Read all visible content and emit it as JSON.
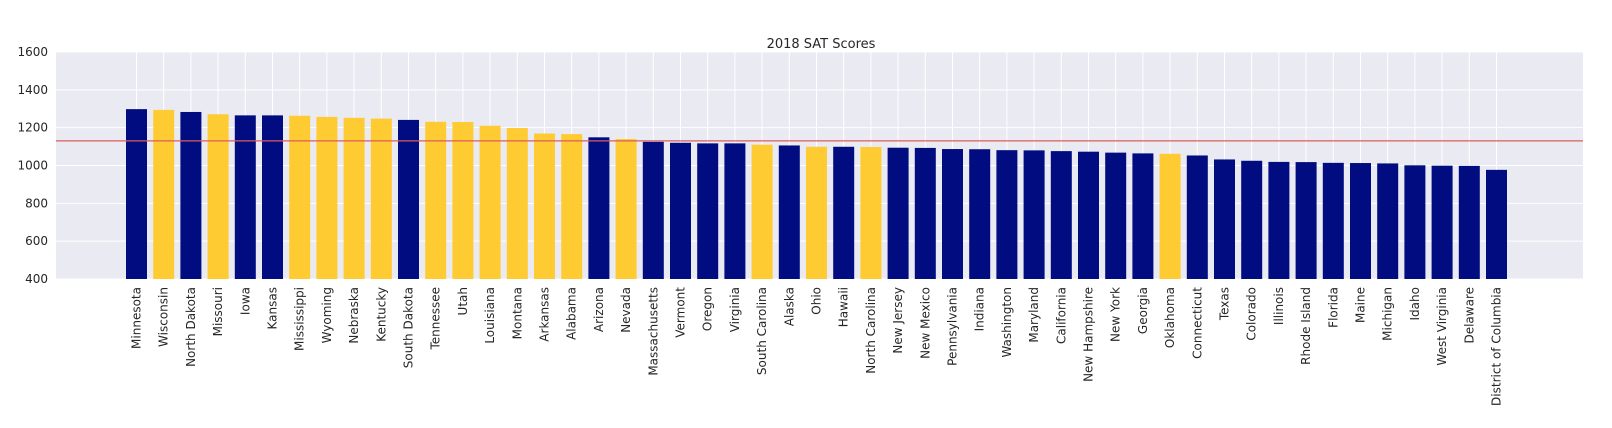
{
  "chart_data": {
    "type": "bar",
    "title": "2018 SAT Scores",
    "xlabel": "",
    "ylabel": "",
    "ylim": [
      400,
      1600
    ],
    "yticks": [
      400,
      600,
      800,
      1000,
      1200,
      1400,
      1600
    ],
    "grid": true,
    "reference_line": 1130,
    "colors": {
      "background": "#eaeaf2",
      "grid": "#ffffff",
      "bar_blue": "#000c80",
      "bar_gold": "#ffcb32",
      "reference_line": "#dc5d5d"
    },
    "categories": [
      "Minnesota",
      "Wisconsin",
      "North Dakota",
      "Missouri",
      "Iowa",
      "Kansas",
      "Mississippi",
      "Wyoming",
      "Nebraska",
      "Kentucky",
      "South Dakota",
      "Tennessee",
      "Utah",
      "Louisiana",
      "Montana",
      "Arkansas",
      "Alabama",
      "Arizona",
      "Nevada",
      "Massachusetts",
      "Vermont",
      "Oregon",
      "Virginia",
      "South Carolina",
      "Alaska",
      "Ohio",
      "Hawaii",
      "North Carolina",
      "New Jersey",
      "New Mexico",
      "Pennsylvania",
      "Indiana",
      "Washington",
      "Maryland",
      "California",
      "New Hampshire",
      "New York",
      "Georgia",
      "Oklahoma",
      "Connecticut",
      "Texas",
      "Colorado",
      "Illinois",
      "Rhode Island",
      "Florida",
      "Maine",
      "Michigan",
      "Idaho",
      "West Virginia",
      "Delaware",
      "District of Columbia"
    ],
    "values": [
      1298,
      1294,
      1283,
      1271,
      1265,
      1265,
      1263,
      1257,
      1252,
      1248,
      1241,
      1231,
      1230,
      1210,
      1198,
      1169,
      1166,
      1149,
      1140,
      1125,
      1120,
      1117,
      1117,
      1110,
      1106,
      1099,
      1099,
      1098,
      1094,
      1093,
      1087,
      1086,
      1081,
      1080,
      1076,
      1073,
      1068,
      1064,
      1062,
      1053,
      1032,
      1025,
      1019,
      1018,
      1014,
      1013,
      1011,
      1001,
      999,
      998,
      977
    ],
    "bar_color_group": [
      "blue",
      "gold",
      "blue",
      "gold",
      "blue",
      "blue",
      "gold",
      "gold",
      "gold",
      "gold",
      "blue",
      "gold",
      "gold",
      "gold",
      "gold",
      "gold",
      "gold",
      "blue",
      "gold",
      "blue",
      "blue",
      "blue",
      "blue",
      "gold",
      "blue",
      "gold",
      "blue",
      "gold",
      "blue",
      "blue",
      "blue",
      "blue",
      "blue",
      "blue",
      "blue",
      "blue",
      "blue",
      "blue",
      "gold",
      "blue",
      "blue",
      "blue",
      "blue",
      "blue",
      "blue",
      "blue",
      "blue",
      "blue",
      "blue",
      "blue",
      "blue"
    ]
  }
}
